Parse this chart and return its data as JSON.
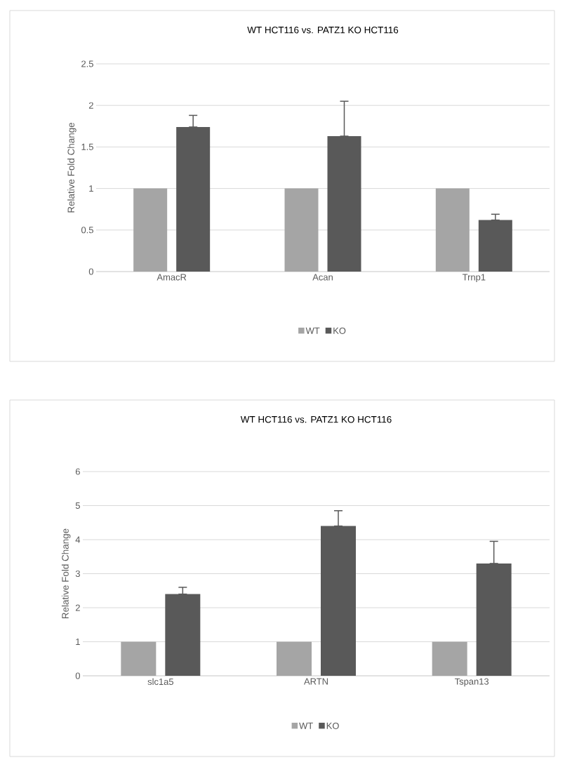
{
  "chart_data": [
    {
      "type": "bar",
      "title": "WT HCT116 vs. PATZ1 KO HCT116",
      "ylabel": "Relative Fold Change",
      "categories": [
        "AmacR",
        "Acan",
        "Trnp1"
      ],
      "series": [
        {
          "name": "WT",
          "color": "#a5a5a5",
          "values": [
            1,
            1,
            1
          ]
        },
        {
          "name": "KO",
          "color": "#595959",
          "values": [
            1.74,
            1.63,
            0.62
          ],
          "errors": [
            [
              1.74,
              1.88
            ],
            [
              1.63,
              2.05
            ],
            [
              0.62,
              0.69
            ]
          ]
        }
      ],
      "ylim": [
        0,
        2.5
      ],
      "yticks": [
        0,
        0.5,
        1,
        1.5,
        2,
        2.5
      ],
      "grid": "y",
      "legend": "bottom"
    },
    {
      "type": "bar",
      "title": "WT HCT116 vs. PATZ1 KO HCT116",
      "ylabel": "Relative Fold Change",
      "categories": [
        "slc1a5",
        "ARTN",
        "Tspan13"
      ],
      "series": [
        {
          "name": "WT",
          "color": "#a5a5a5",
          "values": [
            1,
            1,
            1
          ]
        },
        {
          "name": "KO",
          "color": "#595959",
          "values": [
            2.4,
            4.4,
            3.3
          ],
          "errors": [
            [
              2.4,
              2.6
            ],
            [
              4.4,
              4.85
            ],
            [
              3.3,
              3.95
            ]
          ]
        }
      ],
      "ylim": [
        0,
        6
      ],
      "yticks": [
        0,
        1,
        2,
        3,
        4,
        5,
        6
      ],
      "grid": "y",
      "legend": "bottom"
    }
  ]
}
